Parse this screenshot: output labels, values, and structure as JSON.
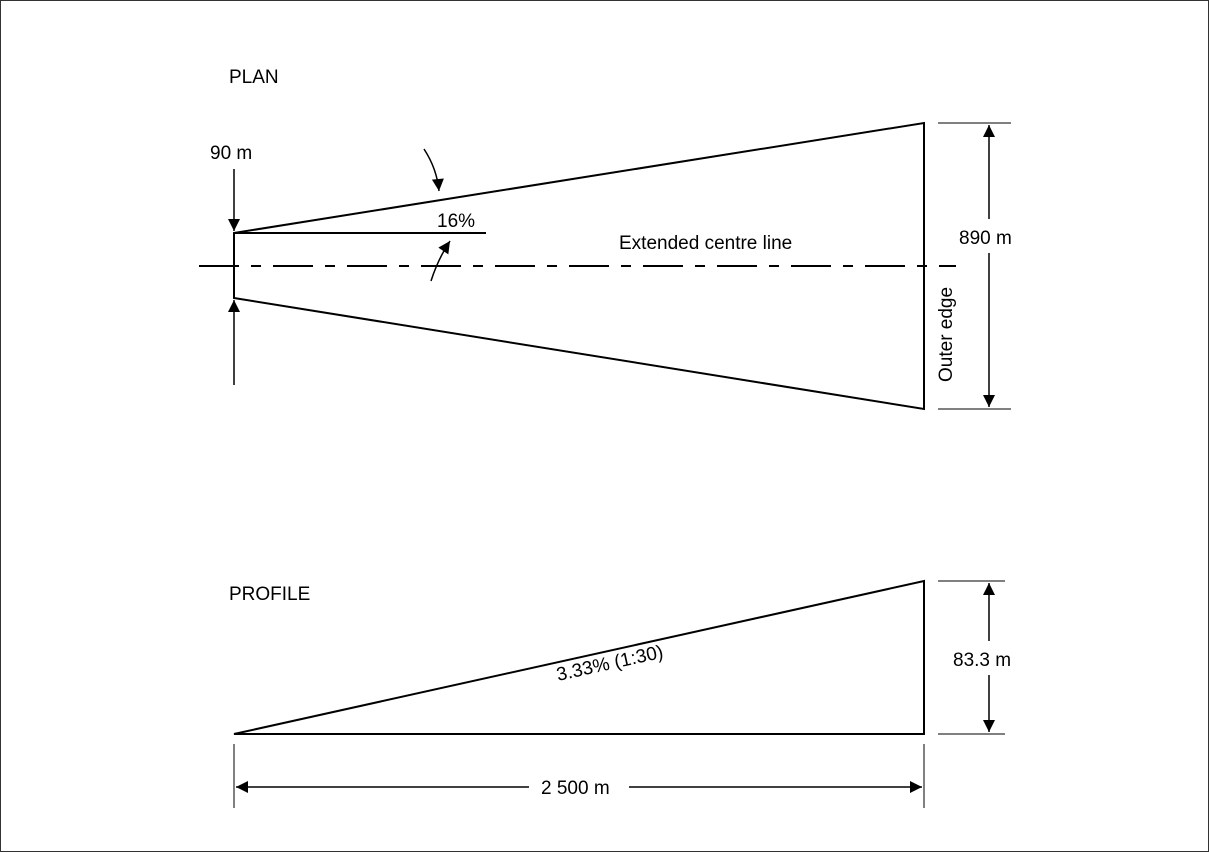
{
  "plan": {
    "title": "PLAN",
    "inner_width_label": "90 m",
    "divergence_label": "16%",
    "centre_line_label": "Extended centre line",
    "outer_width_label": "890 m",
    "outer_edge_label": "Outer edge"
  },
  "profile": {
    "title": "PROFILE",
    "slope_label": "3.33% (1:30)",
    "height_label": "83.3 m",
    "length_label": "2 500 m"
  },
  "colors": {
    "line": "#000000",
    "frame": "#333333",
    "background": "#ffffff"
  }
}
